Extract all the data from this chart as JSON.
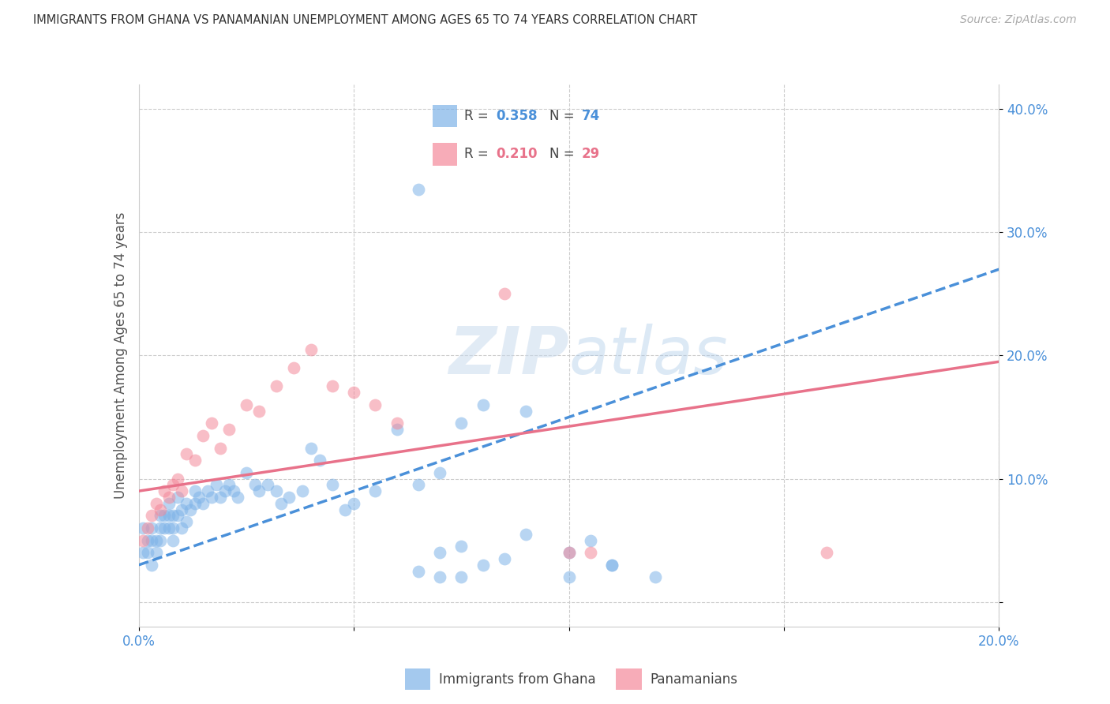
{
  "title": "IMMIGRANTS FROM GHANA VS PANAMANIAN UNEMPLOYMENT AMONG AGES 65 TO 74 YEARS CORRELATION CHART",
  "source": "Source: ZipAtlas.com",
  "ylabel": "Unemployment Among Ages 65 to 74 years",
  "xlim": [
    0.0,
    0.2
  ],
  "ylim": [
    -0.02,
    0.42
  ],
  "yticks": [
    0.0,
    0.1,
    0.2,
    0.3,
    0.4
  ],
  "xticks": [
    0.0,
    0.05,
    0.1,
    0.15,
    0.2
  ],
  "xtick_labels": [
    "0.0%",
    "",
    "",
    "",
    "20.0%"
  ],
  "ytick_labels": [
    "",
    "10.0%",
    "20.0%",
    "30.0%",
    "40.0%"
  ],
  "ghana_R": 0.358,
  "ghana_N": 74,
  "panama_R": 0.21,
  "panama_N": 29,
  "ghana_color": "#7eb3e8",
  "panama_color": "#f4899a",
  "ghana_line_color": "#4a90d9",
  "panama_line_color": "#e8728a",
  "watermark_color": "#daeaf7",
  "ghana_scatter_x": [
    0.001,
    0.001,
    0.002,
    0.002,
    0.003,
    0.003,
    0.003,
    0.004,
    0.004,
    0.005,
    0.005,
    0.005,
    0.006,
    0.006,
    0.007,
    0.007,
    0.007,
    0.008,
    0.008,
    0.008,
    0.009,
    0.009,
    0.01,
    0.01,
    0.011,
    0.011,
    0.012,
    0.013,
    0.013,
    0.014,
    0.015,
    0.016,
    0.017,
    0.018,
    0.019,
    0.02,
    0.021,
    0.022,
    0.023,
    0.025,
    0.027,
    0.028,
    0.03,
    0.032,
    0.033,
    0.035,
    0.038,
    0.04,
    0.042,
    0.045,
    0.048,
    0.05,
    0.055,
    0.06,
    0.065,
    0.07,
    0.075,
    0.08,
    0.09,
    0.1,
    0.105,
    0.11,
    0.065,
    0.07,
    0.075,
    0.08,
    0.085,
    0.09,
    0.1,
    0.11,
    0.12,
    0.065,
    0.07,
    0.075
  ],
  "ghana_scatter_y": [
    0.04,
    0.06,
    0.05,
    0.04,
    0.06,
    0.05,
    0.03,
    0.05,
    0.04,
    0.07,
    0.06,
    0.05,
    0.07,
    0.06,
    0.08,
    0.07,
    0.06,
    0.07,
    0.06,
    0.05,
    0.085,
    0.07,
    0.075,
    0.06,
    0.08,
    0.065,
    0.075,
    0.09,
    0.08,
    0.085,
    0.08,
    0.09,
    0.085,
    0.095,
    0.085,
    0.09,
    0.095,
    0.09,
    0.085,
    0.105,
    0.095,
    0.09,
    0.095,
    0.09,
    0.08,
    0.085,
    0.09,
    0.125,
    0.115,
    0.095,
    0.075,
    0.08,
    0.09,
    0.14,
    0.095,
    0.105,
    0.145,
    0.16,
    0.155,
    0.04,
    0.05,
    0.03,
    0.025,
    0.02,
    0.02,
    0.03,
    0.035,
    0.055,
    0.02,
    0.03,
    0.02,
    0.335,
    0.04,
    0.045
  ],
  "panama_scatter_x": [
    0.001,
    0.002,
    0.003,
    0.004,
    0.005,
    0.006,
    0.007,
    0.008,
    0.009,
    0.01,
    0.011,
    0.013,
    0.015,
    0.017,
    0.019,
    0.021,
    0.025,
    0.028,
    0.032,
    0.036,
    0.04,
    0.045,
    0.05,
    0.055,
    0.06,
    0.085,
    0.1,
    0.105,
    0.16
  ],
  "panama_scatter_y": [
    0.05,
    0.06,
    0.07,
    0.08,
    0.075,
    0.09,
    0.085,
    0.095,
    0.1,
    0.09,
    0.12,
    0.115,
    0.135,
    0.145,
    0.125,
    0.14,
    0.16,
    0.155,
    0.175,
    0.19,
    0.205,
    0.175,
    0.17,
    0.16,
    0.145,
    0.25,
    0.04,
    0.04,
    0.04
  ],
  "ghana_line_x0": 0.0,
  "ghana_line_x1": 0.2,
  "ghana_line_y0": 0.03,
  "ghana_line_y1": 0.27,
  "panama_line_x0": 0.0,
  "panama_line_x1": 0.2,
  "panama_line_y0": 0.09,
  "panama_line_y1": 0.195
}
